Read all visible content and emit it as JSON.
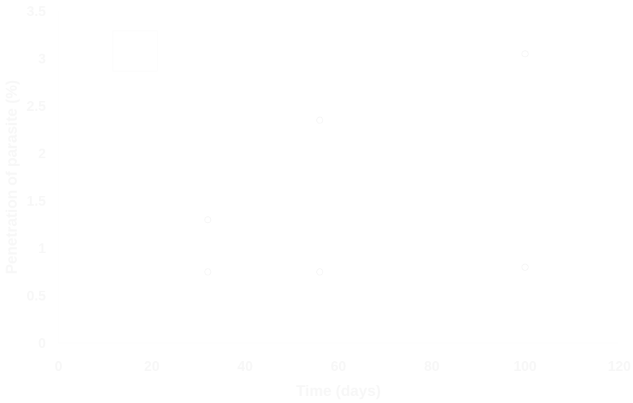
{
  "chart_data": {
    "type": "scatter",
    "title": "",
    "xlabel": "Time (days)",
    "ylabel": "Penetration of parasite (%)",
    "xlim": [
      0,
      120
    ],
    "ylim": [
      0,
      3.5
    ],
    "xticks": [
      0,
      20,
      40,
      60,
      80,
      100,
      120
    ],
    "yticks": [
      0,
      0.5,
      1,
      1.5,
      2,
      2.5,
      3,
      3.5
    ],
    "grid": false,
    "legend": "top-left",
    "series": [
      {
        "name": "",
        "color": "#ffffff",
        "marker": "circle",
        "x": [
          32,
          32,
          56,
          56,
          100,
          100
        ],
        "y": [
          1.3,
          0.75,
          2.35,
          0.75,
          3.05,
          0.8
        ]
      }
    ]
  }
}
